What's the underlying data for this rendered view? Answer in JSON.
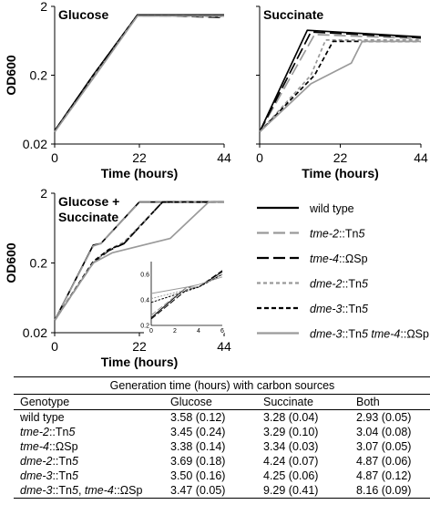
{
  "chart_data": [
    {
      "type": "line",
      "panel_label": "Glucose",
      "ylabel": "OD600",
      "xlabel": "Time (hours)",
      "x_ticks": [
        "0",
        "22",
        "44"
      ],
      "y_ticks": [
        "0.02",
        "0.2",
        "2"
      ],
      "xlim": [
        0,
        44
      ],
      "ylim": [
        0.02,
        2
      ],
      "yscale": "log",
      "series": [
        {
          "style": "wt",
          "x": [
            0,
            10,
            21.5,
            44
          ],
          "y": [
            0.031,
            0.2,
            1.5,
            1.5
          ]
        },
        {
          "style": "tme2",
          "x": [
            0,
            10,
            21.5,
            44
          ],
          "y": [
            0.03,
            0.19,
            1.45,
            1.45
          ]
        },
        {
          "style": "tme4",
          "x": [
            0,
            10,
            21.5,
            44
          ],
          "y": [
            0.031,
            0.2,
            1.5,
            1.38
          ]
        },
        {
          "style": "dme2",
          "x": [
            0,
            10,
            21.5,
            44
          ],
          "y": [
            0.03,
            0.19,
            1.47,
            1.42
          ]
        },
        {
          "style": "dme3",
          "x": [
            0,
            10,
            21.5,
            44
          ],
          "y": [
            0.031,
            0.2,
            1.5,
            1.45
          ]
        },
        {
          "style": "dbl",
          "x": [
            0,
            10,
            21.5,
            44
          ],
          "y": [
            0.03,
            0.18,
            1.45,
            1.45
          ]
        }
      ]
    },
    {
      "type": "line",
      "panel_label": "Succinate",
      "ylabel": "",
      "xlabel": "Time (hours)",
      "x_ticks": [
        "0",
        "22",
        "44"
      ],
      "y_ticks": [],
      "xlim": [
        0,
        44
      ],
      "ylim": [
        0.02,
        2
      ],
      "yscale": "log",
      "series": [
        {
          "style": "wt",
          "x": [
            0,
            13,
            44
          ],
          "y": [
            0.03,
            0.9,
            0.72
          ]
        },
        {
          "style": "tme2",
          "x": [
            0,
            15,
            44
          ],
          "y": [
            0.03,
            0.78,
            0.68
          ]
        },
        {
          "style": "tme4",
          "x": [
            0,
            14,
            44
          ],
          "y": [
            0.03,
            0.85,
            0.7
          ]
        },
        {
          "style": "dme2",
          "x": [
            0,
            14,
            18,
            44
          ],
          "y": [
            0.03,
            0.2,
            0.65,
            0.65
          ]
        },
        {
          "style": "dme3",
          "x": [
            0,
            15,
            20,
            44
          ],
          "y": [
            0.03,
            0.2,
            0.62,
            0.62
          ]
        },
        {
          "style": "dbl",
          "x": [
            0,
            14,
            25,
            28,
            44
          ],
          "y": [
            0.03,
            0.15,
            0.3,
            0.62,
            0.62
          ]
        }
      ]
    },
    {
      "type": "line",
      "panel_label": "Glucose + Succinate",
      "panel_label_lines": [
        "Glucose +",
        "Succinate"
      ],
      "ylabel": "OD600",
      "xlabel": "Time (hours)",
      "x_ticks": [
        "0",
        "22",
        "44"
      ],
      "y_ticks": [
        "0.02",
        "0.2",
        "2"
      ],
      "xlim": [
        0,
        44
      ],
      "ylim": [
        0.02,
        2
      ],
      "yscale": "log",
      "series": [
        {
          "style": "wt",
          "x": [
            0,
            10,
            12,
            22,
            44
          ],
          "y": [
            0.03,
            0.36,
            0.38,
            1.5,
            1.5
          ]
        },
        {
          "style": "tme2",
          "x": [
            0,
            10,
            12,
            22,
            44
          ],
          "y": [
            0.03,
            0.35,
            0.38,
            1.48,
            1.48
          ]
        },
        {
          "style": "tme4",
          "x": [
            0,
            10,
            14,
            18,
            28,
            44
          ],
          "y": [
            0.03,
            0.2,
            0.3,
            0.38,
            1.5,
            1.5
          ]
        },
        {
          "style": "dme2",
          "x": [
            0,
            10,
            14,
            18,
            28,
            44
          ],
          "y": [
            0.03,
            0.2,
            0.31,
            0.4,
            1.48,
            1.48
          ]
        },
        {
          "style": "dme3",
          "x": [
            0,
            10,
            14,
            18,
            28,
            44
          ],
          "y": [
            0.03,
            0.21,
            0.31,
            0.38,
            1.5,
            1.5
          ]
        },
        {
          "style": "dbl",
          "x": [
            0,
            10,
            15,
            30,
            40,
            44
          ],
          "y": [
            0.03,
            0.2,
            0.28,
            0.45,
            1.5,
            1.5
          ]
        }
      ],
      "inset": {
        "x_ticks": [
          "0",
          "2",
          "4",
          "6"
        ],
        "y_ticks": [
          "0.2",
          "0.4",
          "0.6"
        ],
        "xlim": [
          0,
          6
        ],
        "ylim": [
          0.2,
          0.7
        ]
      }
    }
  ],
  "legend": [
    {
      "style": "wt",
      "color": "#000000",
      "dash": "",
      "width": 2.2,
      "parts": [
        {
          "t": "wild type",
          "i": false
        }
      ]
    },
    {
      "style": "tme2",
      "color": "#9a9a9a",
      "dash": "13,5",
      "width": 2.2,
      "parts": [
        {
          "t": "tme-2",
          "i": true
        },
        {
          "t": "::Tn",
          "i": false
        },
        {
          "t": "5",
          "i": true
        }
      ]
    },
    {
      "style": "tme4",
      "color": "#000000",
      "dash": "13,5",
      "width": 2.2,
      "parts": [
        {
          "t": "tme-4",
          "i": true
        },
        {
          "t": "::ΩSp",
          "i": false
        }
      ]
    },
    {
      "style": "dme2",
      "color": "#9a9a9a",
      "dash": "4,3",
      "width": 2.2,
      "parts": [
        {
          "t": "dme-2",
          "i": true
        },
        {
          "t": "::Tn",
          "i": false
        },
        {
          "t": "5",
          "i": true
        }
      ]
    },
    {
      "style": "dme3",
      "color": "#000000",
      "dash": "5,3",
      "width": 2.2,
      "parts": [
        {
          "t": "dme-3",
          "i": true
        },
        {
          "t": "::Tn",
          "i": false
        },
        {
          "t": "5",
          "i": true
        }
      ]
    },
    {
      "style": "dbl",
      "color": "#9a9a9a",
      "dash": "",
      "width": 2.2,
      "parts": [
        {
          "t": "dme-3",
          "i": true
        },
        {
          "t": "::Tn",
          "i": false
        },
        {
          "t": "5",
          "i": true
        },
        {
          "t": " ",
          "i": false
        },
        {
          "t": "tme-4",
          "i": true
        },
        {
          "t": "::ΩSp",
          "i": false
        }
      ]
    }
  ],
  "table": {
    "title": "Generation time (hours) with carbon sources",
    "headers": [
      "Genotype",
      "Glucose",
      "Succinate",
      "Both"
    ],
    "rows": [
      {
        "genotype": [
          {
            "t": "wild type",
            "i": false
          }
        ],
        "values": [
          "3.58 (0.12)",
          "3.28 (0.04)",
          "2.93 (0.05)"
        ]
      },
      {
        "genotype": [
          {
            "t": "tme-2",
            "i": true
          },
          {
            "t": "::Tn",
            "i": false
          },
          {
            "t": "5",
            "i": true
          }
        ],
        "values": [
          "3.45 (0.24)",
          "3.29 (0.10)",
          "3.04 (0.08)"
        ]
      },
      {
        "genotype": [
          {
            "t": "tme-4",
            "i": true
          },
          {
            "t": "::ΩSp",
            "i": false
          }
        ],
        "values": [
          "3.38 (0.14)",
          "3.34 (0.03)",
          "3.07 (0.05)"
        ]
      },
      {
        "genotype": [
          {
            "t": "dme-2",
            "i": true
          },
          {
            "t": "::Tn",
            "i": false
          },
          {
            "t": "5",
            "i": true
          }
        ],
        "values": [
          "3.69 (0.18)",
          "4.24 (0.07)",
          "4.87 (0.06)"
        ]
      },
      {
        "genotype": [
          {
            "t": "dme-3",
            "i": true
          },
          {
            "t": "::Tn",
            "i": false
          },
          {
            "t": "5",
            "i": true
          }
        ],
        "values": [
          "3.50 (0.16)",
          "4.25 (0.06)",
          "4.87 (0.12)"
        ]
      },
      {
        "genotype": [
          {
            "t": "dme-3",
            "i": true
          },
          {
            "t": "::Tn",
            "i": false
          },
          {
            "t": "5",
            "i": true
          },
          {
            "t": ", ",
            "i": false
          },
          {
            "t": "tme-4",
            "i": true
          },
          {
            "t": "::ΩSp",
            "i": false
          }
        ],
        "values": [
          "3.47 (0.05)",
          "9.29 (0.41)",
          "8.16 (0.09)"
        ]
      }
    ]
  }
}
